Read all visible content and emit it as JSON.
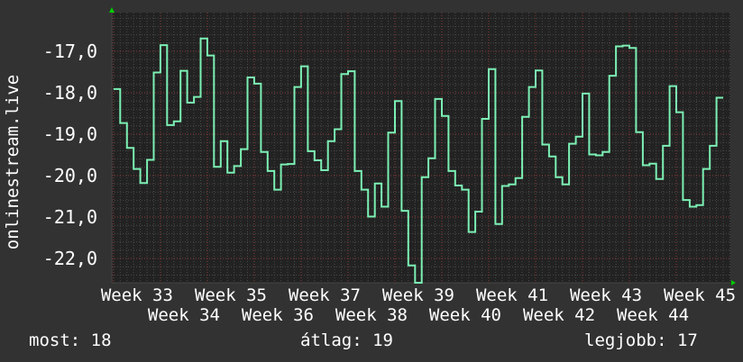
{
  "chart_data": {
    "type": "line",
    "step": true,
    "title": "",
    "ylabel": "onlinestream.live",
    "xlabel": "",
    "ylim": [
      -22.59,
      -16.07
    ],
    "yticks": [
      -17,
      -18,
      -19,
      -20,
      -21,
      -22
    ],
    "ytick_labels": [
      "-17,0",
      "-18,0",
      "-19,0",
      "-20,0",
      "-21,0",
      "-22,0"
    ],
    "xtick_labels": [
      "Week 33",
      "Week 34",
      "Week 35",
      "Week 36",
      "Week 37",
      "Week 38",
      "Week 39",
      "Week 40",
      "Week 41",
      "Week 42",
      "Week 43",
      "Week 44",
      "Week 45"
    ],
    "x_unit": "day",
    "grid": true,
    "line_color": "#7cf0b4",
    "values": [
      -17.91,
      -18.73,
      -19.33,
      -19.84,
      -20.18,
      -19.62,
      -17.51,
      -16.85,
      -18.78,
      -18.69,
      -17.47,
      -18.24,
      -18.1,
      -16.69,
      -17.1,
      -19.79,
      -19.17,
      -19.93,
      -19.77,
      -19.36,
      -17.63,
      -17.78,
      -19.43,
      -19.89,
      -20.34,
      -19.73,
      -19.72,
      -17.86,
      -17.36,
      -19.41,
      -19.63,
      -19.87,
      -19.17,
      -18.88,
      -17.55,
      -17.48,
      -19.89,
      -20.34,
      -20.99,
      -20.19,
      -20.75,
      -18.96,
      -18.2,
      -20.85,
      -22.17,
      -22.6,
      -20.04,
      -19.58,
      -18.15,
      -18.56,
      -19.89,
      -20.24,
      -20.34,
      -21.36,
      -20.87,
      -18.63,
      -17.43,
      -21.17,
      -20.25,
      -20.21,
      -20.06,
      -18.58,
      -17.86,
      -17.46,
      -19.25,
      -19.54,
      -20.04,
      -20.21,
      -19.23,
      -19.06,
      -18.02,
      -19.49,
      -19.51,
      -19.43,
      -17.59,
      -16.88,
      -16.86,
      -16.92,
      -18.95,
      -19.75,
      -19.71,
      -20.08,
      -19.28,
      -17.84,
      -18.47,
      -20.59,
      -20.75,
      -20.71,
      -19.84,
      -19.28,
      -18.12
    ]
  },
  "legend": {
    "current": "most: 18",
    "average": "átlag: 19",
    "best": "legjobb: 17"
  },
  "colors": {
    "background": "#323232",
    "plot_background": "#222222",
    "major_grid": "#8a3b3b",
    "minor_grid": "#4a4a4a",
    "axis_arrow": "#00cc00"
  }
}
